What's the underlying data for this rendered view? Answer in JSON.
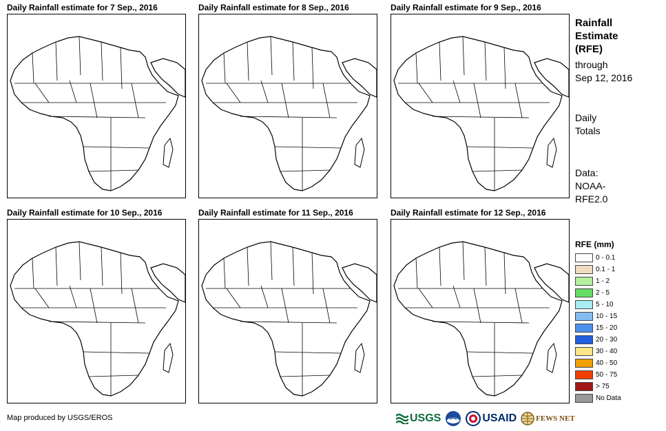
{
  "panels": [
    {
      "title": "Daily Rainfall estimate for 7 Sep., 2016"
    },
    {
      "title": "Daily Rainfall estimate for 8 Sep., 2016"
    },
    {
      "title": "Daily Rainfall estimate for 9 Sep., 2016"
    },
    {
      "title": "Daily Rainfall estimate for 10 Sep., 2016"
    },
    {
      "title": "Daily Rainfall estimate for 11 Sep., 2016"
    },
    {
      "title": "Daily Rainfall estimate for 12 Sep., 2016"
    }
  ],
  "side": {
    "title_1": "Rainfall",
    "title_2": "Estimate",
    "title_3": "(RFE)",
    "through_1": "through",
    "through_2": "Sep 12, 2016",
    "daily_1": "Daily",
    "daily_2": "Totals",
    "data_1": "Data:",
    "data_2": "NOAA-",
    "data_3": "RFE2.0"
  },
  "legend": {
    "title": "RFE (mm)",
    "items": [
      {
        "label": "0 - 0.1",
        "color": "#ffffff"
      },
      {
        "label": "0.1 - 1",
        "color": "#f0dcc0"
      },
      {
        "label": "1 - 2",
        "color": "#b4f0a0"
      },
      {
        "label": "2 - 5",
        "color": "#64dc64"
      },
      {
        "label": "5 - 10",
        "color": "#a8ecf4"
      },
      {
        "label": "10 - 15",
        "color": "#84bcf0"
      },
      {
        "label": "15 - 20",
        "color": "#4c90ec"
      },
      {
        "label": "20 - 30",
        "color": "#2060e0"
      },
      {
        "label": "30 - 40",
        "color": "#fce488"
      },
      {
        "label": "40 - 50",
        "color": "#f0a000"
      },
      {
        "label": "50 - 75",
        "color": "#f04000"
      },
      {
        "label": "> 75",
        "color": "#a01818"
      },
      {
        "label": "No Data",
        "color": "#999999"
      }
    ]
  },
  "footer": {
    "credit": "Map produced by USGS/EROS",
    "logos": [
      "USGS",
      "NOAA",
      "USAID",
      "FEWS NET"
    ]
  }
}
